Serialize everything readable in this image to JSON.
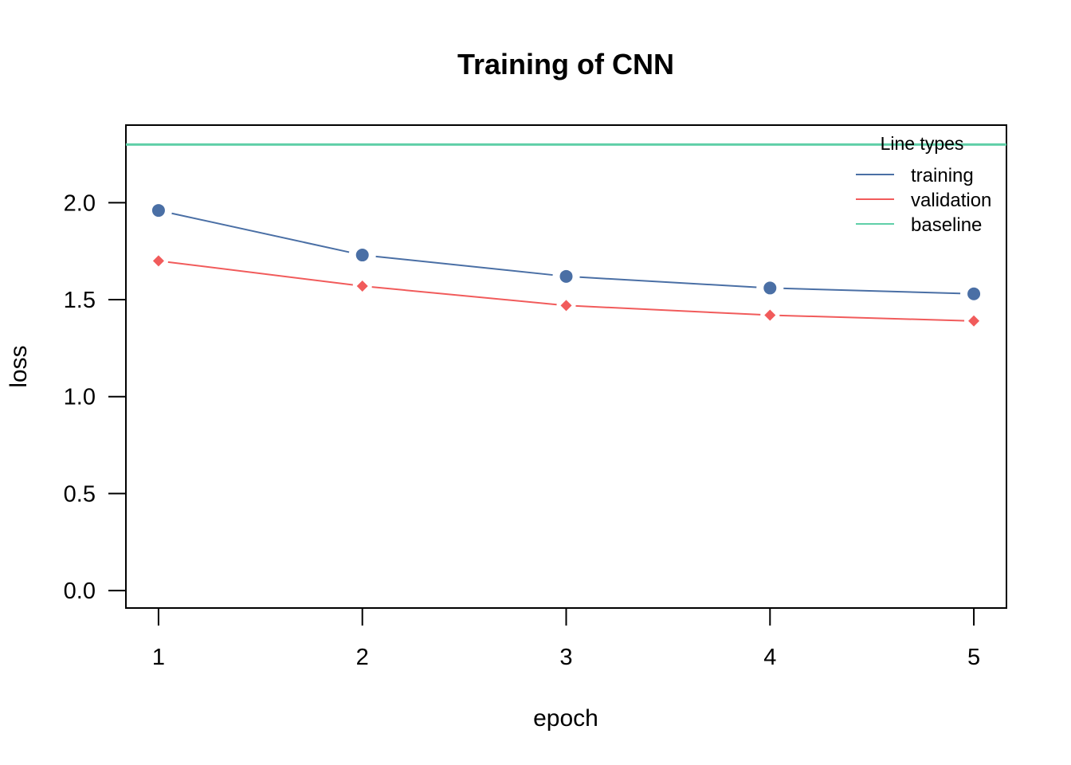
{
  "chart_data": {
    "type": "line",
    "title": "Training of CNN",
    "xlabel": "epoch",
    "ylabel": "loss",
    "x": [
      1,
      2,
      3,
      4,
      5
    ],
    "xlim": [
      0.84,
      5.16
    ],
    "ylim": [
      -0.09,
      2.4
    ],
    "xticks": [
      "1",
      "2",
      "3",
      "4",
      "5"
    ],
    "yticks": [
      "0.0",
      "0.5",
      "1.0",
      "1.5",
      "2.0"
    ],
    "grid": false,
    "series": [
      {
        "name": "training",
        "values": [
          1.96,
          1.73,
          1.62,
          1.56,
          1.53
        ],
        "color": "#4a6fa5",
        "marker": "circle"
      },
      {
        "name": "validation",
        "values": [
          1.7,
          1.57,
          1.47,
          1.42,
          1.39
        ],
        "color": "#f15b5b",
        "marker": "diamond"
      }
    ],
    "baseline": {
      "name": "baseline",
      "value": 2.3,
      "color": "#5fcfa8"
    },
    "legend": {
      "title": "Line types",
      "position": "top-right"
    }
  }
}
